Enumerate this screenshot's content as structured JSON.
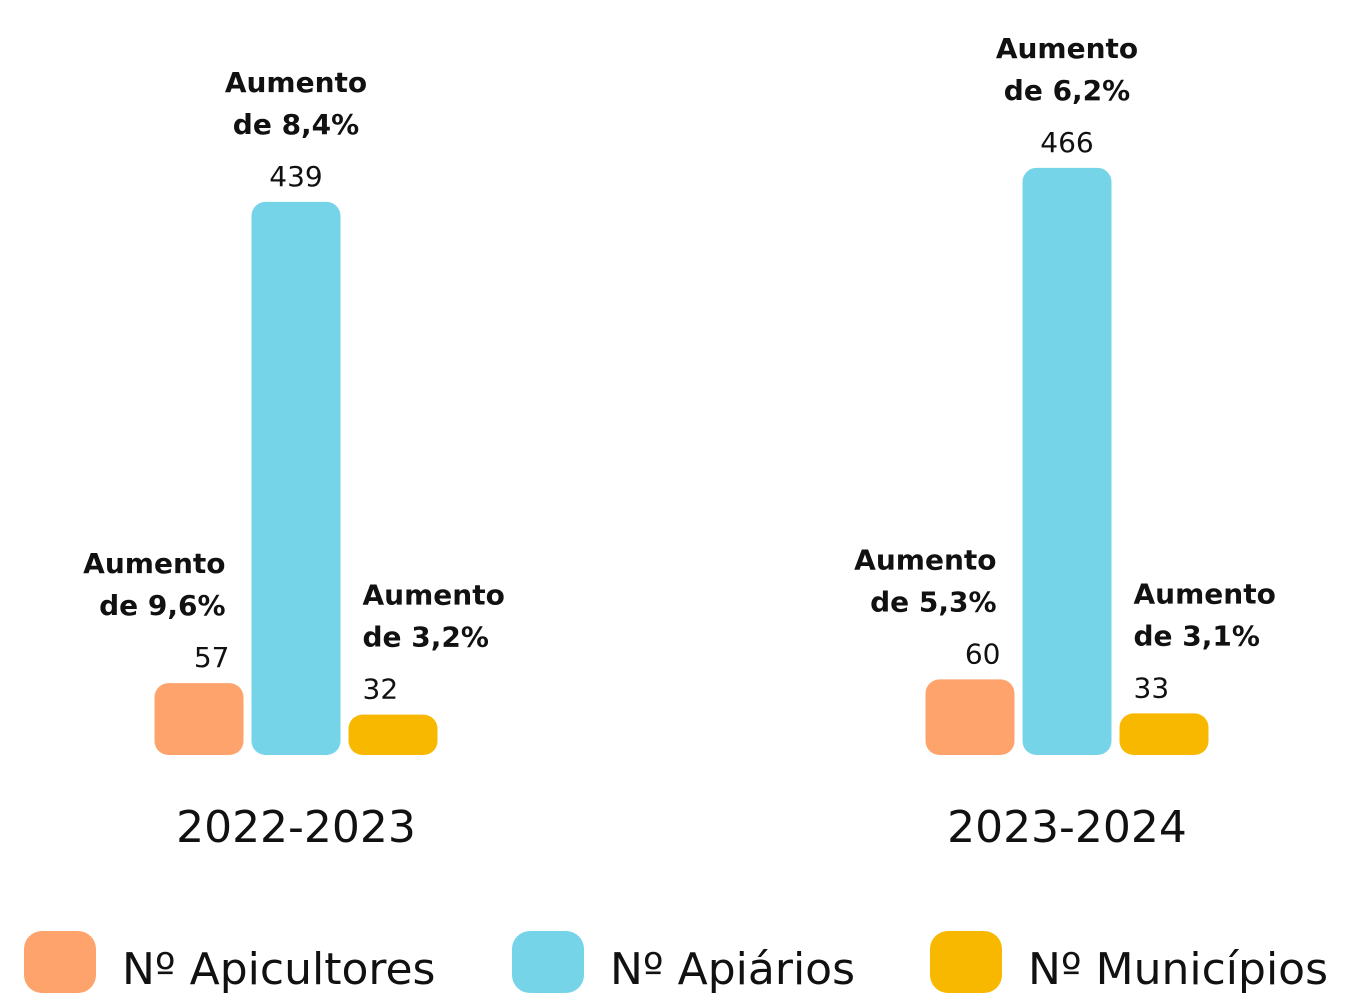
{
  "chart_data": {
    "type": "bar",
    "categories": [
      "2022-2023",
      "2023-2024"
    ],
    "series": [
      {
        "name": "Nº Apicultores",
        "color": "#FFA36C",
        "values": [
          57,
          60
        ],
        "annotations": [
          "Aumento de 9,6%",
          "Aumento de 5,3%"
        ]
      },
      {
        "name": "Nº Apiários",
        "color": "#75D4E8",
        "values": [
          439,
          466
        ],
        "annotations": [
          "Aumento de 8,4%",
          "Aumento de 6,2%"
        ]
      },
      {
        "name": "Nº Municípios",
        "color": "#F9B800",
        "values": [
          32,
          33
        ],
        "annotations": [
          "Aumento de 3,2%",
          "Aumento de 3,1%"
        ]
      }
    ],
    "legend": "bottom"
  }
}
